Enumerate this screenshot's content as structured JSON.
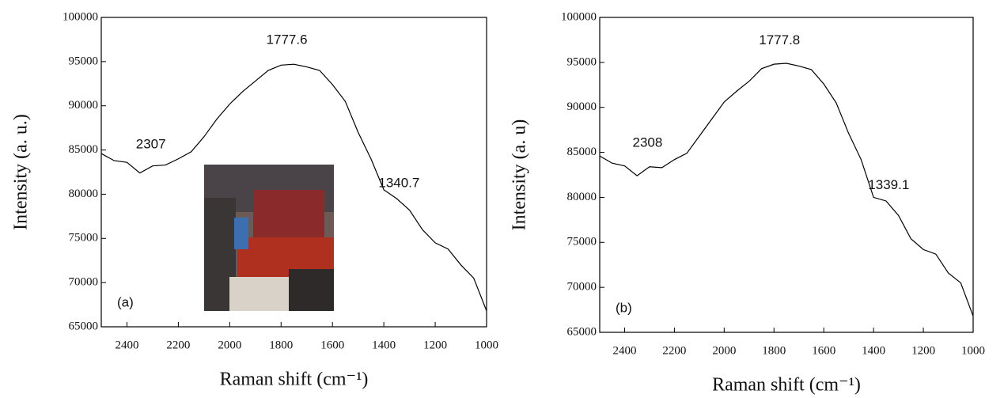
{
  "chart_data": [
    {
      "type": "line",
      "panel_label": "(a)",
      "xlabel": "Raman shift (cm⁻¹)",
      "ylabel": "Intensity (a. u.)",
      "x": [
        2500,
        2450,
        2400,
        2350,
        2300,
        2250,
        2200,
        2150,
        2100,
        2050,
        2000,
        1950,
        1900,
        1850,
        1800,
        1750,
        1700,
        1650,
        1600,
        1550,
        1500,
        1450,
        1400,
        1350,
        1300,
        1250,
        1200,
        1150,
        1100,
        1050,
        1000
      ],
      "values": [
        84600,
        83800,
        83600,
        82400,
        83200,
        83300,
        84000,
        84800,
        86500,
        88500,
        90200,
        91600,
        92800,
        94000,
        94600,
        94700,
        94400,
        94000,
        92400,
        90500,
        87000,
        84000,
        80500,
        79500,
        78200,
        76000,
        74500,
        73800,
        72000,
        70500,
        66800
      ],
      "color": "#000000",
      "xlim": [
        2500,
        1000
      ],
      "xticks": [
        2400,
        2200,
        2000,
        1800,
        1600,
        1400,
        1200,
        1000
      ],
      "ylim": [
        65000,
        100000
      ],
      "yticks": [
        65000,
        70000,
        75000,
        80000,
        85000,
        90000,
        95000,
        100000
      ],
      "annotations": [
        {
          "label": "2307",
          "x": 2307,
          "y": 85600
        },
        {
          "label": "1777.6",
          "x": 1777.6,
          "y": 97400
        },
        {
          "label": "1340.7",
          "x": 1340.7,
          "y": 81200
        }
      ]
    },
    {
      "type": "line",
      "panel_label": "(b)",
      "xlabel": "Raman shift (cm⁻¹)",
      "ylabel": "Intensity (a. u)",
      "x": [
        2500,
        2450,
        2400,
        2350,
        2300,
        2250,
        2200,
        2150,
        2100,
        2050,
        2000,
        1950,
        1900,
        1850,
        1800,
        1750,
        1700,
        1650,
        1600,
        1550,
        1500,
        1450,
        1400,
        1350,
        1300,
        1250,
        1200,
        1150,
        1100,
        1050,
        1000
      ],
      "values": [
        84600,
        83800,
        83500,
        82400,
        83400,
        83300,
        84200,
        84900,
        86800,
        88700,
        90600,
        91800,
        92900,
        94300,
        94800,
        94900,
        94600,
        94200,
        92600,
        90500,
        87100,
        84200,
        80000,
        79600,
        78000,
        75400,
        74200,
        73700,
        71600,
        70500,
        66800
      ],
      "color": "#000000",
      "xlim": [
        2500,
        1000
      ],
      "xticks": [
        2400,
        2200,
        2000,
        1800,
        1600,
        1400,
        1200,
        1000
      ],
      "ylim": [
        65000,
        100000
      ],
      "yticks": [
        65000,
        70000,
        75000,
        80000,
        85000,
        90000,
        95000,
        100000
      ],
      "annotations": [
        {
          "label": "2308",
          "x": 2308,
          "y": 86000
        },
        {
          "label": "1777.8",
          "x": 1777.8,
          "y": 97400
        },
        {
          "label": "1339.1",
          "x": 1339.1,
          "y": 81300
        }
      ]
    }
  ]
}
